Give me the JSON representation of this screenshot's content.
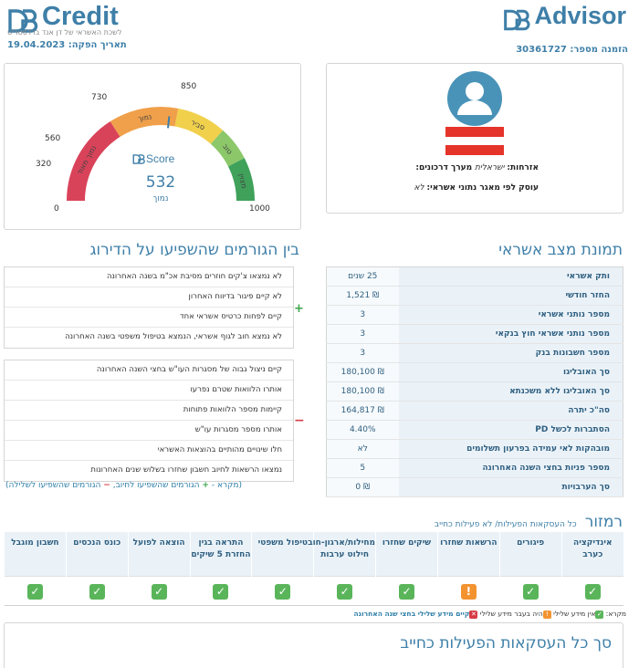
{
  "header": {
    "credit_logo_mark": "DB",
    "credit_logo_word": "Credit",
    "credit_tagline": "לשכת האשראי של דן אנד ברדסטריט",
    "issue_date_label": "תאריך הפקה:",
    "issue_date": "19.04.2023",
    "advisor_logo_mark": "DB",
    "advisor_logo_word": "Advisor",
    "order_label": "הזמנה מספר:",
    "order_number": "30361727"
  },
  "score": {
    "logo_mark": "DB",
    "logo_word": "Score",
    "value": "532",
    "label": "נמוך",
    "ticks": [
      "0",
      "320",
      "560",
      "730",
      "850",
      "1000"
    ],
    "bands": [
      {
        "label": "נמוך מאוד",
        "from": 0,
        "to": 320,
        "color": "#d9435a"
      },
      {
        "label": "נמוך",
        "from": 320,
        "to": 560,
        "color": "#f0a04a"
      },
      {
        "label": "סביר",
        "from": 560,
        "to": 730,
        "color": "#f1d04c"
      },
      {
        "label": "טוב",
        "from": 730,
        "to": 850,
        "color": "#8cc86a"
      },
      {
        "label": "מצוין",
        "from": 850,
        "to": 1000,
        "color": "#3fa15a"
      }
    ],
    "score_numeric": 532,
    "max": 1000
  },
  "profile": {
    "avatar_icon": "user-avatar-icon",
    "citizenship_label": "אזרחות:",
    "citizenship_value": "ישראלית",
    "passport_label": "מערך דרכונים:",
    "employed_label": "עוסק לפי מאגר נתוני אשראי:",
    "employed_value": "לא"
  },
  "credit_section": {
    "title": "תמונת מצב אשראי",
    "rows": [
      {
        "label": "ותק אשראי",
        "value": "25 שנים"
      },
      {
        "label": "החזר חודשי",
        "value": "₪ 1,521"
      },
      {
        "label": "מספר נותני אשראי",
        "value": "3"
      },
      {
        "label": "מספר נותני אשראי חוץ בנקאי",
        "value": "3"
      },
      {
        "label": "מספר חשבונות בנק",
        "value": "3"
      },
      {
        "label": "סך האובליגו",
        "value": "₪ 180,100"
      },
      {
        "label": "סך האובליגו ללא משכנתא",
        "value": "₪ 180,100"
      },
      {
        "label": "סה\"כ יתרה",
        "value": "₪ 164,817"
      },
      {
        "label": "הסתברות לכשל PD",
        "value": "4.40%"
      },
      {
        "label": "מובהקות לאי עמידה בפרעון תשלומים",
        "value": "לא"
      },
      {
        "label": "מספר פניות בחצי השנה האחרונה",
        "value": "5"
      },
      {
        "label": "סך הערבויות",
        "value": "₪ 0"
      }
    ]
  },
  "factors": {
    "title": "בין הגורמים שהשפיעו על הדירוג",
    "positive": [
      "לא נמצאו צ'קים חוזרים מסיבת אכ\"מ בשנה האחרונה",
      "לא קיים פיגור בדיווח האחרון",
      "קיים לפחות כרטיס אשראי אחד",
      "לא נמצא חוב לגוף אשראי, הנמצא בטיפול משפטי בשנה האחרונה"
    ],
    "negative": [
      "קיים ניצול גבוה של מסגרות העו\"ש בחצי השנה האחרונה",
      "אותרו הלוואות שטרם נפרעו",
      "קיימות מספר הלוואות פתוחות",
      "אותרו מספר מסגרות עו\"ש",
      "חלו שינויים מהותיים בהוצאות האשראי",
      "נמצאו הרשאות לחיוב חשבון שחזרו בשלוש שנים האחרונות"
    ],
    "plus_symbol": "+",
    "minus_symbol": "−",
    "legend_prefix": "(מקרא -",
    "legend_positive": "הגורמים שהשפיעו לחיוב,",
    "legend_negative": "הגורמים שהשפיעו לשלילה)"
  },
  "summary": {
    "title": "רמזור",
    "subtitle": "כל העסקאות הפעילות/ לא פעילות כחייב",
    "columns": [
      {
        "label": "חשבון מוגבל",
        "status": "ok"
      },
      {
        "label": "כונס הנכסים",
        "status": "ok"
      },
      {
        "label": "הוצאה לפועל",
        "status": "ok"
      },
      {
        "label": "התראה בגין החזרת 5 שיקים",
        "status": "ok"
      },
      {
        "label": "טיפול משפטי",
        "status": "ok"
      },
      {
        "label": "מחילות/ארגון-חוב חילוט ערבות",
        "status": "ok"
      },
      {
        "label": "שיקים שחזרו",
        "status": "ok"
      },
      {
        "label": "הרשאות שחזרו",
        "status": "warn"
      },
      {
        "label": "פיגורים",
        "status": "ok"
      },
      {
        "label": "אינדיקציה כערב",
        "status": "ok"
      }
    ],
    "check_symbol": "✓",
    "warn_symbol": "!",
    "x_symbol": "✕",
    "legend_label": "מקרא:",
    "legend_ok": "אין מידע שלילי",
    "legend_past": "היה בעבר מידע שלילי",
    "legend_current": "קיים מידע שלילי בחצי שנה האחרונה"
  },
  "bottom": {
    "title": "סך כל העסקאות הפעילות כחייב"
  },
  "colors": {
    "accent": "#3e7fa8",
    "positive": "#5ab55a",
    "warning": "#f39330",
    "negative": "#d63b45"
  }
}
